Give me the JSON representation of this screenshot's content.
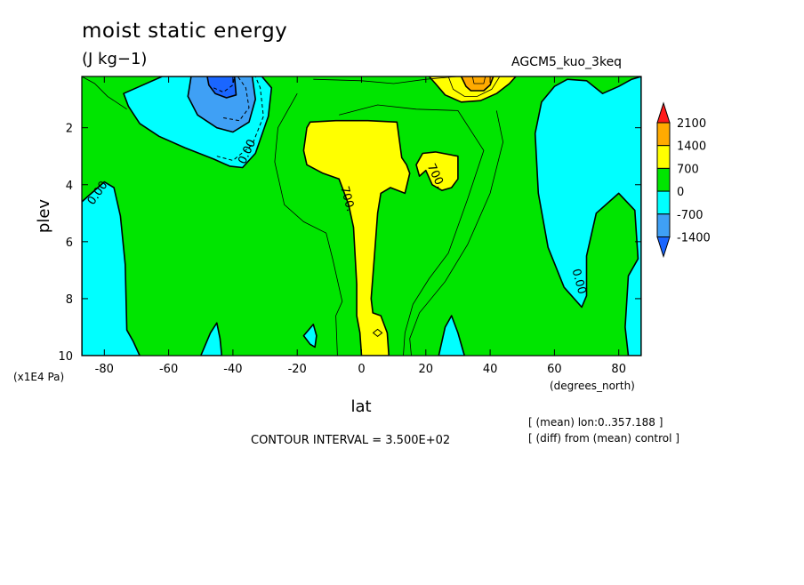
{
  "header": {
    "title": "moist static energy",
    "units": "(J kg−1)",
    "experiment": "AGCM5_kuo_3keq"
  },
  "footer": {
    "contour_interval": "CONTOUR INTERVAL = 3.500E+02",
    "mean_note": "[ (mean) lon:0..357.188 ]",
    "diff_note": "[ (diff) from (mean) control ]"
  },
  "colors": {
    "c_lt_neg2100": "#1a66ff",
    "c_neg1400_neg700": "#3fa0f5",
    "c_neg700_0": "#00ffff",
    "c_0_700": "#00e500",
    "c_700_1400": "#ffff00",
    "c_1400_2100": "#ffaa00",
    "c_gt_2100": "#ff1a1a",
    "lines": "#000000"
  },
  "chart_data": {
    "type": "heatmap",
    "title": "moist static energy",
    "subtitle": "(J kg−1)",
    "xlabel": "lat",
    "x_units": "(degrees_north)",
    "ylabel": "plev",
    "y_units": "(x1E4 Pa)",
    "xlim": [
      -87,
      87
    ],
    "ylim": [
      10,
      0.2
    ],
    "x_ticks": [
      -80,
      -60,
      -40,
      -20,
      0,
      20,
      40,
      60,
      80
    ],
    "x_tick_labels": [
      "-80",
      "-60",
      "-40",
      "-20",
      "0",
      "20",
      "40",
      "60",
      "80"
    ],
    "y_ticks": [
      2,
      4,
      6,
      8,
      10
    ],
    "y_tick_labels": [
      "2",
      "4",
      "6",
      "8",
      "10"
    ],
    "contour_interval": 350,
    "colorbar": {
      "levels": [
        -1400,
        -700,
        0,
        700,
        1400,
        2100
      ],
      "labels": [
        "2100",
        "1400",
        "700",
        "0",
        "-700",
        "-1400"
      ],
      "fills": [
        "#1a66ff",
        "#3fa0f5",
        "#00ffff",
        "#00e500",
        "#ffff00",
        "#ffaa00",
        "#ff1a1a"
      ]
    },
    "contour_labels": [
      {
        "text": "0.00",
        "lat": -82,
        "plev": 4.3,
        "rotate": -55
      },
      {
        "text": "0.00",
        "lat": -35.5,
        "plev": 2.85,
        "rotate": -65
      },
      {
        "text": "700.",
        "lat": -4.5,
        "plev": 4.5,
        "rotate": 75
      },
      {
        "text": "700.",
        "lat": 23,
        "plev": 3.7,
        "rotate": 65
      },
      {
        "text": "0.00",
        "lat": 67.5,
        "plev": 7.4,
        "rotate": 75
      }
    ],
    "regions": [
      {
        "name": "region-sh-polar-negative",
        "value": "-700 to 0",
        "color": "#00ffff",
        "points": [
          [
            -87,
            4.6
          ],
          [
            -84,
            4.3
          ],
          [
            -80,
            3.9
          ],
          [
            -77,
            4.1
          ],
          [
            -75,
            5.1
          ],
          [
            -73.5,
            6.8
          ],
          [
            -73,
            9.1
          ],
          [
            -71,
            9.5
          ],
          [
            -69,
            10
          ],
          [
            -87,
            10
          ]
        ]
      },
      {
        "name": "region-sh-midlat-negative",
        "value": "-700 to 0",
        "color": "#00ffff",
        "points": [
          [
            -55,
            0.2
          ],
          [
            -31,
            0.2
          ],
          [
            -28,
            0.6
          ],
          [
            -29,
            1.6
          ],
          [
            -33,
            2.9
          ],
          [
            -37,
            3.4
          ],
          [
            -41,
            3.35
          ],
          [
            -46,
            3.1
          ],
          [
            -55,
            2.7
          ],
          [
            -63,
            2.3
          ],
          [
            -69,
            1.85
          ],
          [
            -72.5,
            1.25
          ],
          [
            -74,
            0.8
          ],
          [
            -69,
            0.55
          ],
          [
            -62,
            0.2
          ]
        ]
      },
      {
        "name": "region-sh-midlat-neg700",
        "value": "-1400 to -700",
        "color": "#3fa0f5",
        "points": [
          [
            -53,
            0.2
          ],
          [
            -34,
            0.2
          ],
          [
            -33,
            1.0
          ],
          [
            -35,
            1.8
          ],
          [
            -40,
            2.15
          ],
          [
            -45,
            2.0
          ],
          [
            -51,
            1.55
          ],
          [
            -54,
            0.9
          ]
        ]
      },
      {
        "name": "region-sh-midlat-neg1400",
        "value": "-2100 to -1400",
        "color": "#1a66ff",
        "points": [
          [
            -48,
            0.2
          ],
          [
            -39.5,
            0.2
          ],
          [
            -39,
            0.85
          ],
          [
            -42,
            0.95
          ],
          [
            -45.5,
            0.8
          ],
          [
            -47.5,
            0.5
          ]
        ]
      },
      {
        "name": "region-nh-polar-negative",
        "value": "-700 to 0",
        "color": "#00ffff",
        "points": [
          [
            87,
            0.2
          ],
          [
            87,
            10
          ],
          [
            83,
            10
          ],
          [
            82,
            9.0
          ],
          [
            83,
            7.2
          ],
          [
            86,
            6.6
          ],
          [
            85,
            4.9
          ],
          [
            80,
            4.3
          ],
          [
            73,
            5.0
          ],
          [
            70,
            6.5
          ],
          [
            70,
            7.9
          ],
          [
            68.5,
            8.3
          ],
          [
            63,
            7.6
          ],
          [
            58,
            6.2
          ],
          [
            55,
            4.3
          ],
          [
            54,
            2.2
          ],
          [
            56,
            1.1
          ],
          [
            60,
            0.55
          ],
          [
            64,
            0.3
          ],
          [
            70,
            0.35
          ],
          [
            75,
            0.8
          ],
          [
            80,
            0.55
          ],
          [
            84,
            0.3
          ]
        ]
      },
      {
        "name": "region-sh-surface-patch",
        "value": "-700 to 0",
        "color": "#00ffff",
        "points": [
          [
            -50,
            10
          ],
          [
            -47,
            9.2
          ],
          [
            -45,
            8.85
          ],
          [
            -44,
            9.4
          ],
          [
            -43.5,
            10
          ]
        ]
      },
      {
        "name": "region-subtropical-patch-south",
        "value": "-700 to 0",
        "color": "#00ffff",
        "points": [
          [
            -18,
            9.3
          ],
          [
            -15,
            8.9
          ],
          [
            -14,
            9.3
          ],
          [
            -14.5,
            9.7
          ],
          [
            -16,
            9.6
          ]
        ]
      },
      {
        "name": "region-nh-surface-patch",
        "value": "-700 to 0",
        "color": "#00ffff",
        "points": [
          [
            24,
            10
          ],
          [
            26,
            9.0
          ],
          [
            28,
            8.6
          ],
          [
            30,
            9.2
          ],
          [
            32,
            10
          ]
        ]
      },
      {
        "name": "region-tropical-positive",
        "value": "700 to 1400",
        "color": "#ffff00",
        "points": [
          [
            -17,
            2.0
          ],
          [
            -16,
            1.8
          ],
          [
            -8,
            1.75
          ],
          [
            2,
            1.75
          ],
          [
            11,
            1.8
          ],
          [
            12.5,
            3.05
          ],
          [
            14,
            3.3
          ],
          [
            15,
            3.6
          ],
          [
            13.5,
            4.3
          ],
          [
            9,
            4.1
          ],
          [
            6,
            4.3
          ],
          [
            5,
            5.0
          ],
          [
            4,
            6.5
          ],
          [
            3,
            8.0
          ],
          [
            3.5,
            8.5
          ],
          [
            6,
            8.6
          ],
          [
            8,
            9.2
          ],
          [
            8.5,
            10
          ],
          [
            0,
            10
          ],
          [
            -0.5,
            9.2
          ],
          [
            -1.5,
            8.6
          ],
          [
            -1.5,
            7.5
          ],
          [
            -2.5,
            5.5
          ],
          [
            -4,
            4.7
          ],
          [
            -7,
            3.8
          ],
          [
            -12,
            3.6
          ],
          [
            -17,
            3.3
          ],
          [
            -18,
            2.8
          ]
        ]
      },
      {
        "name": "region-nh-upper-positive",
        "value": "700 to 1400",
        "color": "#ffff00",
        "points": [
          [
            21,
            0.2
          ],
          [
            23,
            0.45
          ],
          [
            26,
            0.85
          ],
          [
            31,
            1.1
          ],
          [
            37,
            1.05
          ],
          [
            42,
            0.8
          ],
          [
            46,
            0.45
          ],
          [
            48,
            0.2
          ]
        ]
      },
      {
        "name": "region-nh-upper-patch",
        "value": "700 to 1400",
        "color": "#ffff00",
        "points": [
          [
            17,
            3.3
          ],
          [
            19,
            2.9
          ],
          [
            23,
            2.85
          ],
          [
            30,
            3.0
          ],
          [
            30,
            3.8
          ],
          [
            28,
            4.1
          ],
          [
            25,
            4.2
          ],
          [
            22,
            4.0
          ],
          [
            20,
            3.5
          ],
          [
            18,
            3.7
          ]
        ]
      },
      {
        "name": "region-nh-upper-max",
        "value": "1400 to 2100",
        "color": "#ffaa00",
        "points": [
          [
            31,
            0.2
          ],
          [
            32.5,
            0.55
          ],
          [
            34,
            0.7
          ],
          [
            38,
            0.7
          ],
          [
            40,
            0.5
          ],
          [
            41,
            0.2
          ]
        ]
      }
    ],
    "contours": [
      {
        "name": "contour-sh-upper-350",
        "value": 350,
        "style": "thin",
        "points": [
          [
            -87,
            0.2
          ],
          [
            -83,
            0.45
          ],
          [
            -79,
            0.9
          ],
          [
            -73,
            1.35
          ]
        ]
      },
      {
        "name": "contour-sh-upper-neg350",
        "value": -350,
        "style": "dashed",
        "points": [
          [
            -45,
            3.0
          ],
          [
            -40,
            3.15
          ],
          [
            -34,
            2.6
          ],
          [
            -30.5,
            1.6
          ],
          [
            -31.5,
            0.6
          ],
          [
            -33,
            0.2
          ]
        ]
      },
      {
        "name": "contour-sh-upper-neg1050",
        "value": -1050,
        "style": "dashed",
        "points": [
          [
            -43,
            1.65
          ],
          [
            -38,
            1.75
          ],
          [
            -35,
            1.3
          ],
          [
            -36,
            0.6
          ],
          [
            -38.5,
            0.2
          ]
        ]
      },
      {
        "name": "contour-sh-upper-neg1750",
        "value": -1750,
        "style": "dashed",
        "points": [
          [
            -46,
            0.6
          ],
          [
            -43,
            0.75
          ],
          [
            -40,
            0.5
          ],
          [
            -39.5,
            0.2
          ]
        ]
      },
      {
        "name": "contour-tropical-350-west",
        "value": 350,
        "style": "thin",
        "points": [
          [
            -20,
            0.8
          ],
          [
            -26,
            2.0
          ],
          [
            -27,
            3.2
          ],
          [
            -24,
            4.7
          ],
          [
            -18,
            5.3
          ],
          [
            -11,
            5.7
          ],
          [
            -9,
            6.6
          ],
          [
            -7,
            7.6
          ],
          [
            -6,
            8.1
          ],
          [
            -8,
            8.6
          ],
          [
            -7.5,
            10
          ]
        ]
      },
      {
        "name": "contour-tropical-350-east",
        "value": 350,
        "style": "thin",
        "points": [
          [
            -7,
            1.55
          ],
          [
            5,
            1.2
          ],
          [
            17,
            1.35
          ],
          [
            30,
            1.4
          ],
          [
            38,
            2.8
          ],
          [
            33,
            4.5
          ],
          [
            27,
            6.4
          ],
          [
            21,
            7.3
          ],
          [
            16,
            8.2
          ],
          [
            13.5,
            9.2
          ],
          [
            13,
            10
          ]
        ]
      },
      {
        "name": "contour-upper-350-arc",
        "value": 350,
        "style": "thin",
        "points": [
          [
            -15,
            0.3
          ],
          [
            0,
            0.35
          ],
          [
            10,
            0.45
          ],
          [
            20,
            0.3
          ],
          [
            30,
            0.2
          ]
        ]
      },
      {
        "name": "contour-nh-upper-1050",
        "value": 1050,
        "style": "thin",
        "points": [
          [
            27,
            0.2
          ],
          [
            28.5,
            0.65
          ],
          [
            32,
            0.9
          ],
          [
            36,
            0.9
          ],
          [
            40.5,
            0.65
          ],
          [
            43,
            0.2
          ]
        ]
      },
      {
        "name": "contour-nh-upper-1750",
        "value": 1750,
        "style": "thin",
        "points": [
          [
            34.5,
            0.2
          ],
          [
            35,
            0.45
          ],
          [
            38,
            0.45
          ],
          [
            38.5,
            0.2
          ]
        ]
      },
      {
        "name": "contour-nh-mid-350-a",
        "value": 350,
        "style": "thin",
        "points": [
          [
            42,
            1.4
          ],
          [
            44,
            2.5
          ],
          [
            40,
            4.3
          ],
          [
            33,
            6.1
          ],
          [
            26,
            7.4
          ],
          [
            18,
            8.5
          ],
          [
            15,
            9.4
          ],
          [
            15.5,
            10
          ]
        ]
      }
    ],
    "diamond": {
      "lat": 5,
      "plev": 9.2
    }
  }
}
